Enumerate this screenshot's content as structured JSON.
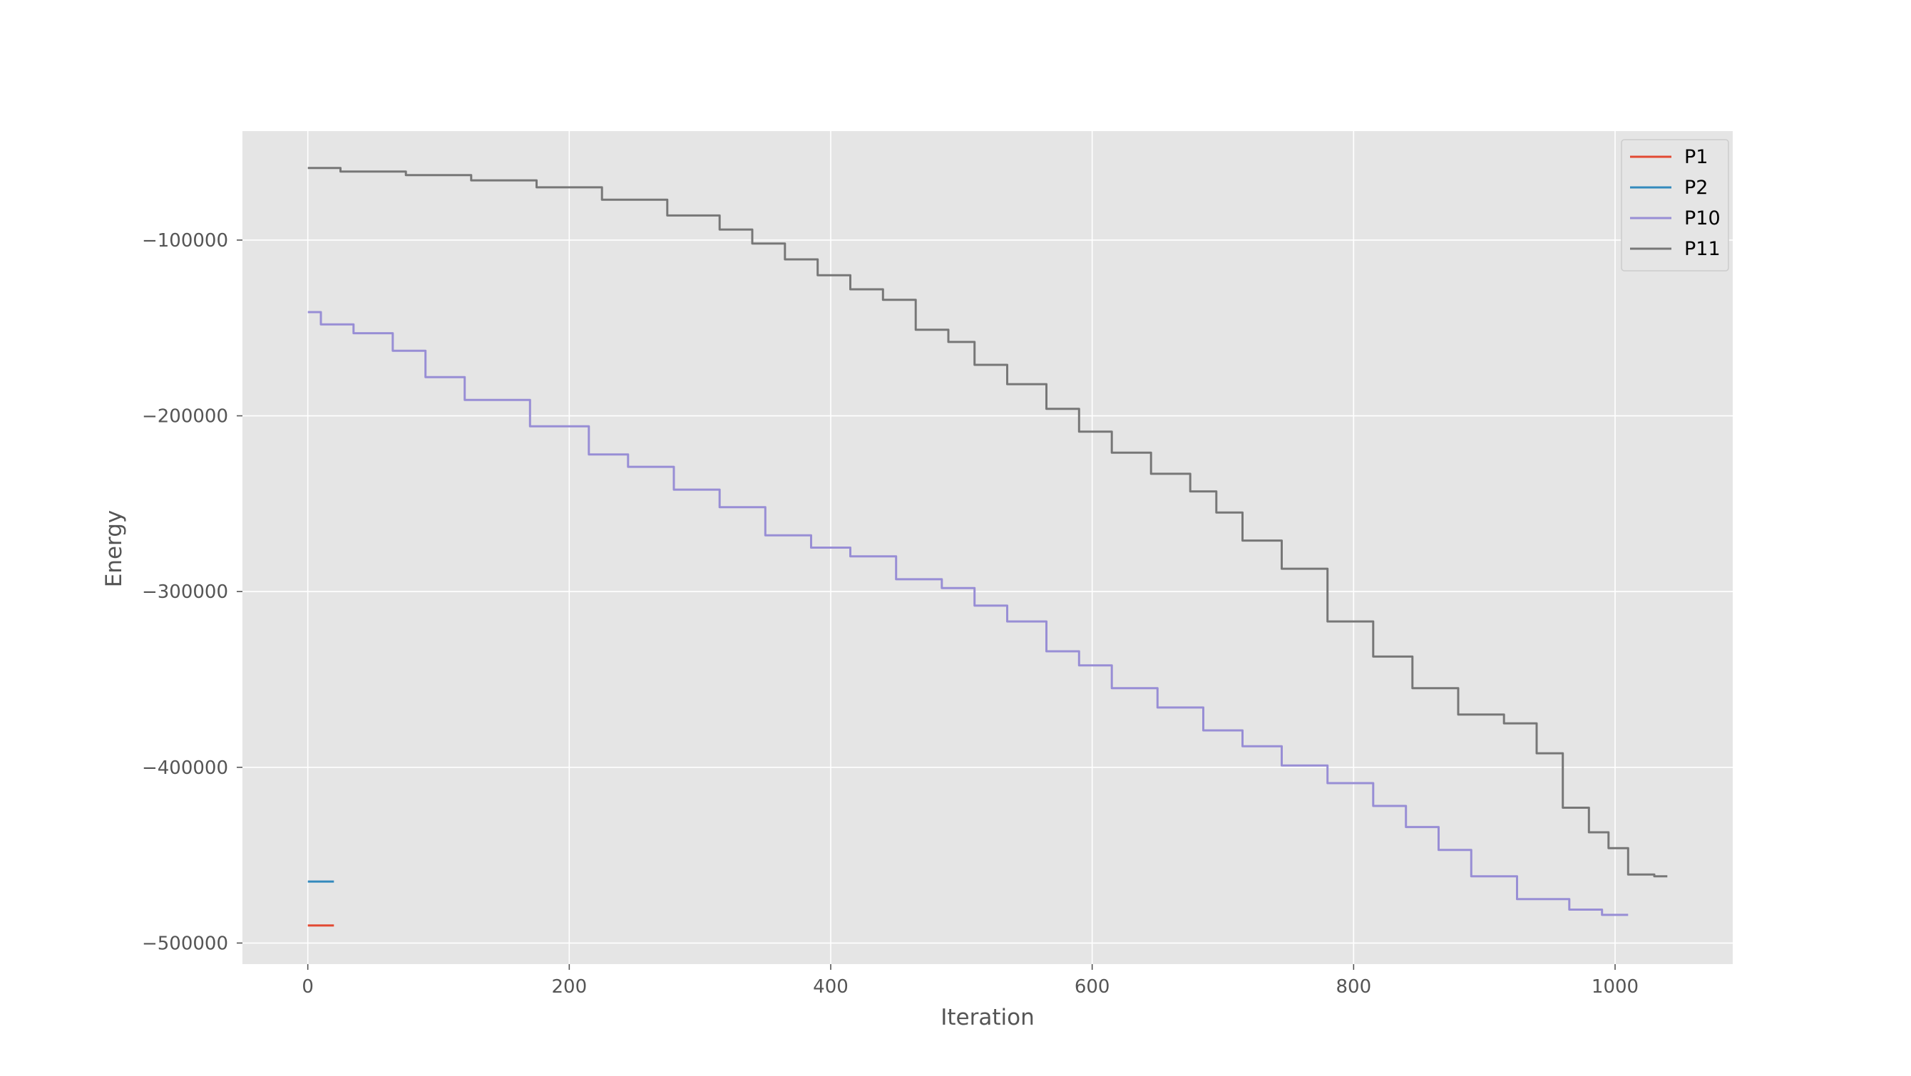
{
  "chart_data": {
    "type": "line",
    "title": "",
    "xlabel": "Iteration",
    "ylabel": "Energy",
    "xlim": [
      -50,
      1090
    ],
    "ylim": [
      -512000,
      -38000
    ],
    "xticks": [
      0,
      200,
      400,
      600,
      800,
      1000
    ],
    "xtick_labels": [
      "0",
      "200",
      "400",
      "600",
      "800",
      "1000"
    ],
    "yticks": [
      -100000,
      -200000,
      -300000,
      -400000,
      -500000
    ],
    "ytick_labels": [
      "−100000",
      "−200000",
      "−300000",
      "−400000",
      "−500000"
    ],
    "grid": true,
    "legend_position": "top-right",
    "series": [
      {
        "name": "P1",
        "color": "#E24A33",
        "x": [
          0,
          20
        ],
        "y": [
          -490000,
          -490000
        ]
      },
      {
        "name": "P2",
        "color": "#348ABD",
        "x": [
          0,
          20
        ],
        "y": [
          -465000,
          -465000
        ]
      },
      {
        "name": "P10",
        "color": "#988ED5",
        "x": [
          0,
          20,
          50,
          80,
          100,
          140,
          200,
          230,
          260,
          300,
          330,
          370,
          400,
          430,
          470,
          500,
          520,
          550,
          580,
          600,
          630,
          670,
          700,
          730,
          760,
          800,
          830,
          850,
          880,
          900,
          950,
          980,
          1000,
          1010
        ],
        "y": [
          -141000,
          -148000,
          -153000,
          -163000,
          -178000,
          -191000,
          -206000,
          -222000,
          -229000,
          -242000,
          -252000,
          -268000,
          -275000,
          -280000,
          -293000,
          -298000,
          -308000,
          -317000,
          -334000,
          -342000,
          -355000,
          -366000,
          -379000,
          -388000,
          -399000,
          -409000,
          -422000,
          -434000,
          -447000,
          -462000,
          -475000,
          -481000,
          -484000,
          -484000
        ]
      },
      {
        "name": "P11",
        "color": "#777777",
        "x": [
          0,
          50,
          100,
          150,
          200,
          250,
          300,
          330,
          350,
          380,
          400,
          430,
          450,
          480,
          500,
          520,
          550,
          580,
          600,
          630,
          660,
          690,
          700,
          730,
          760,
          800,
          830,
          860,
          900,
          930,
          950,
          970,
          990,
          1000,
          1020,
          1040
        ],
        "y": [
          -59000,
          -61000,
          -63000,
          -66000,
          -70000,
          -77000,
          -86000,
          -94000,
          -102000,
          -111000,
          -120000,
          -128000,
          -134000,
          -151000,
          -158000,
          -171000,
          -182000,
          -196000,
          -209000,
          -221000,
          -233000,
          -243000,
          -255000,
          -271000,
          -287000,
          -317000,
          -337000,
          -355000,
          -370000,
          -375000,
          -392000,
          -423000,
          -437000,
          -446000,
          -461000,
          -462000
        ]
      }
    ]
  }
}
